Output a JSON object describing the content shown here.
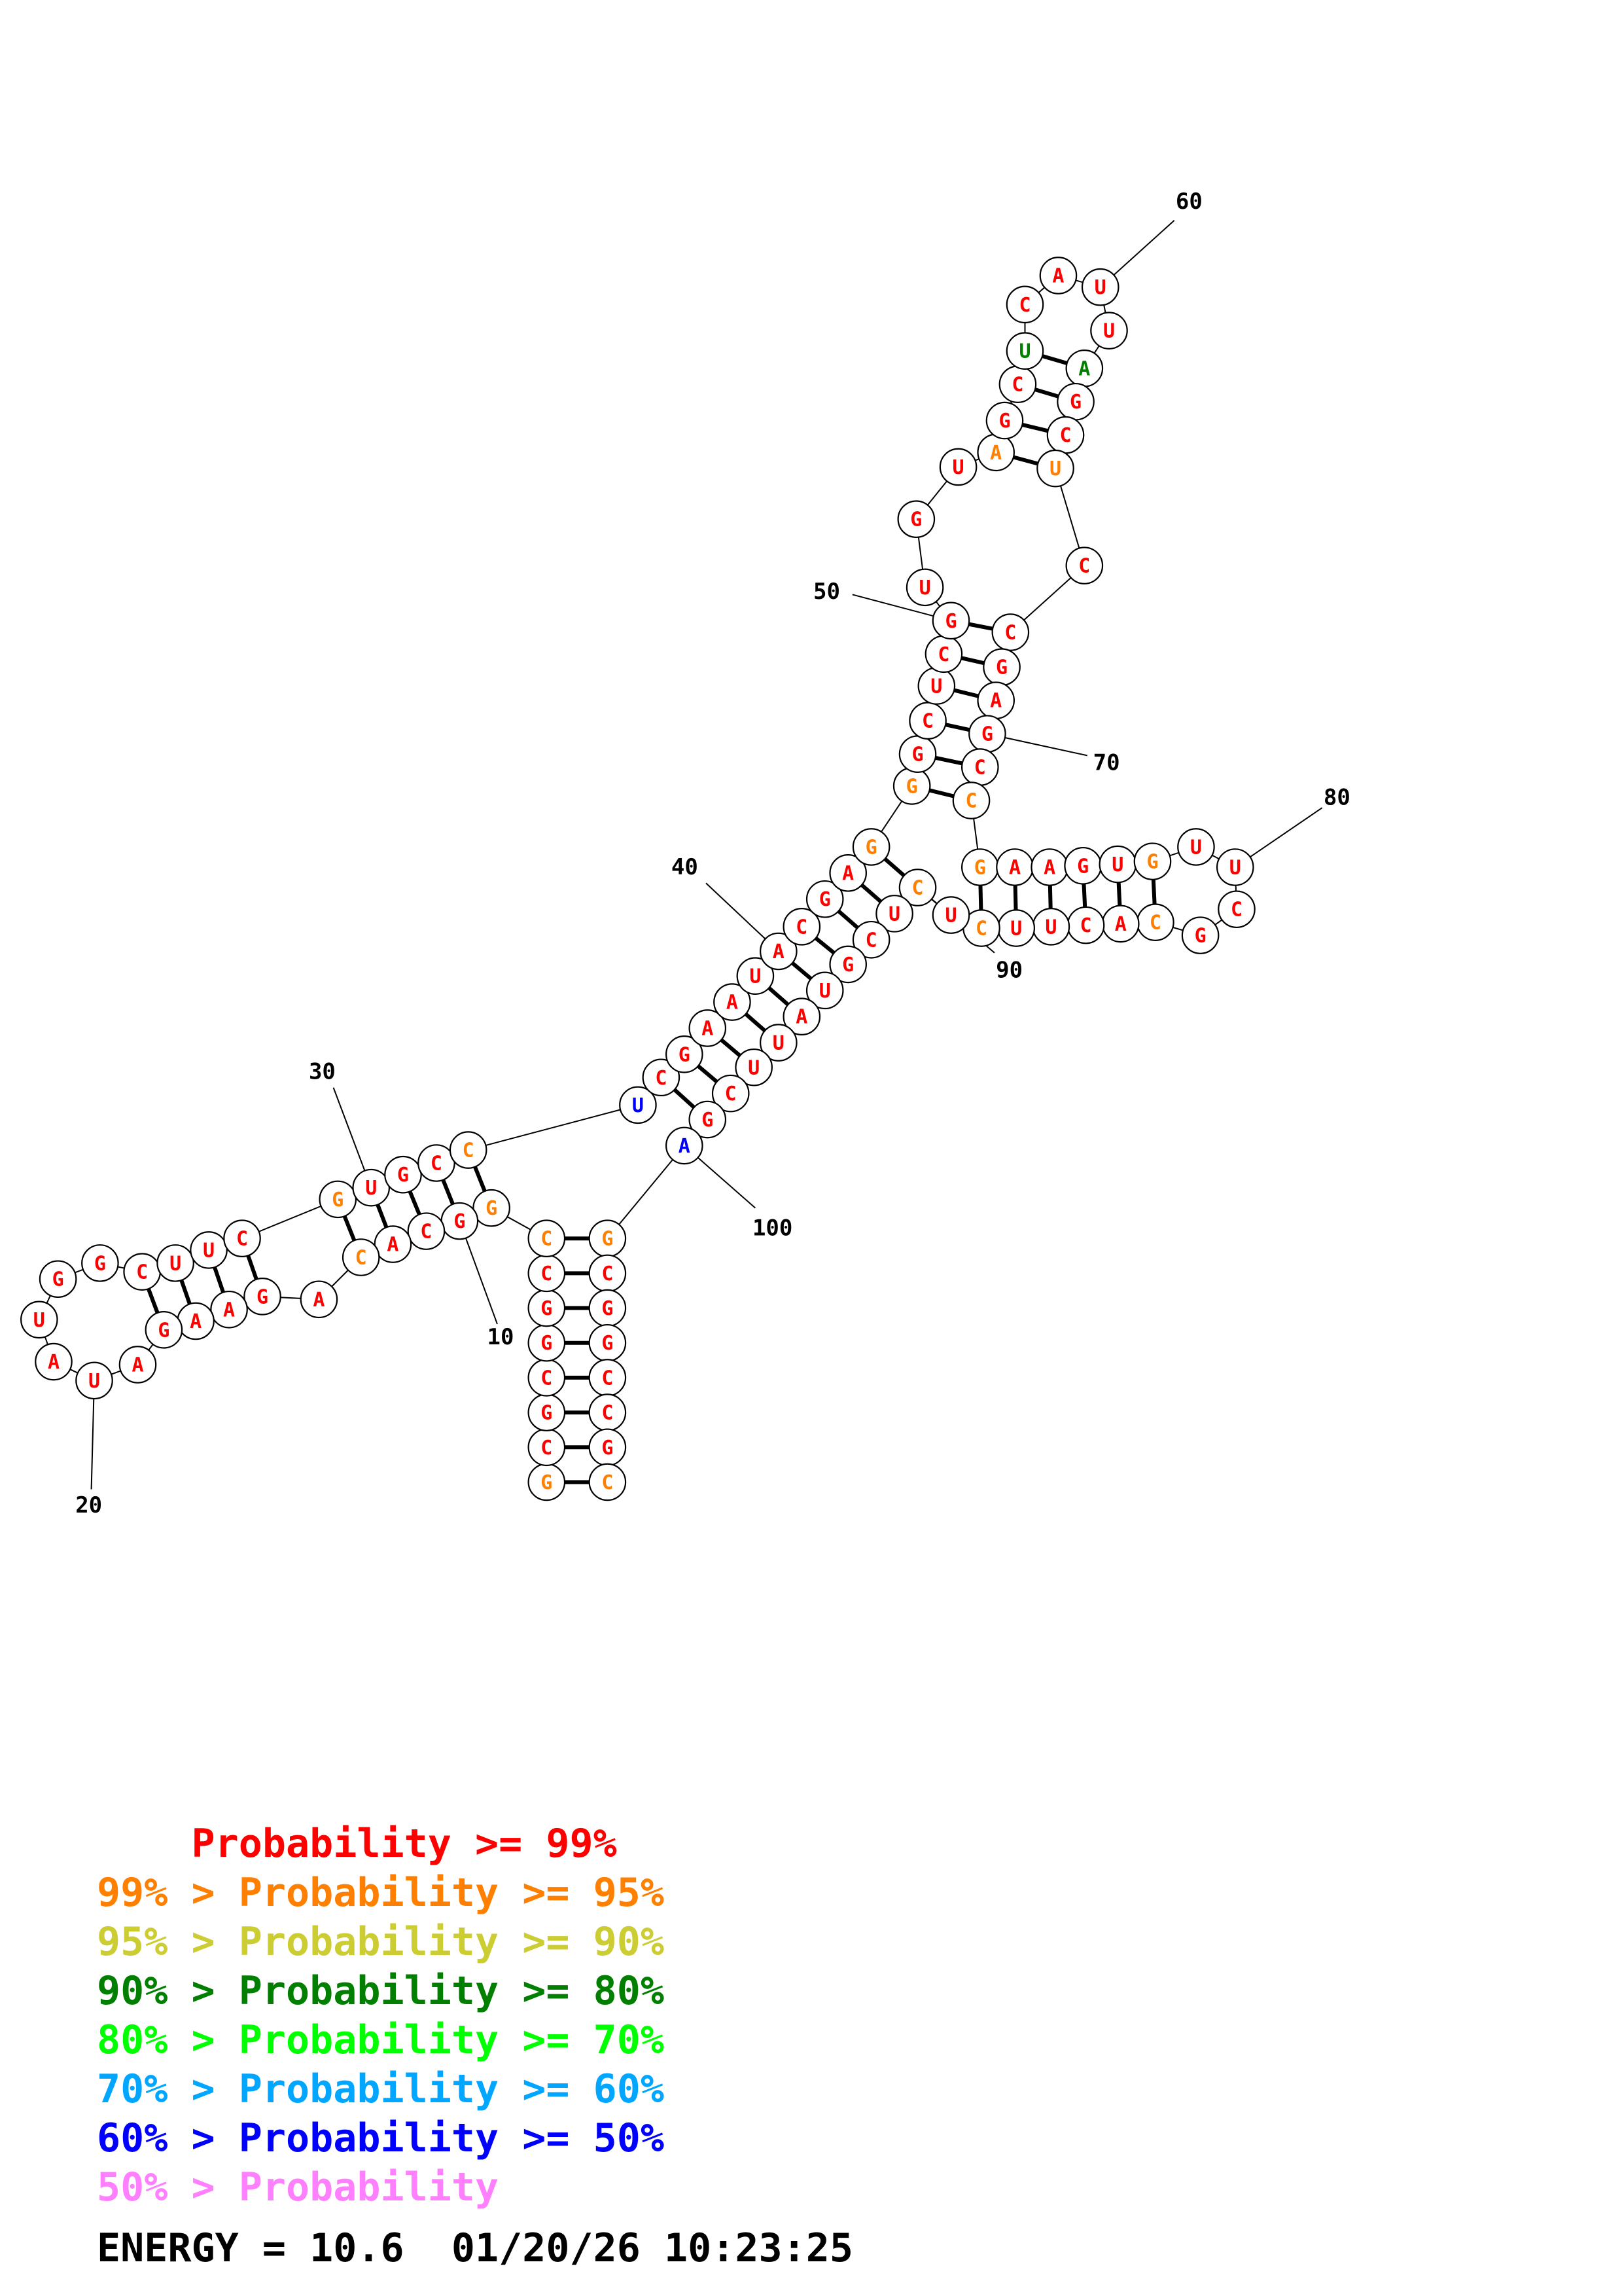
{
  "palette": {
    "ge99": "#ff0000",
    "ge95": "#ff7f00",
    "ge90": "#cccc33",
    "ge80": "#007f00",
    "ge70": "#00ff00",
    "ge60": "#00a6ff",
    "ge50": "#0000ff",
    "lt50": "#ff80ff"
  },
  "nucleotides": [
    {
      "i": 1,
      "b": "G",
      "c": "ge95"
    },
    {
      "i": 2,
      "b": "C",
      "c": "ge99"
    },
    {
      "i": 3,
      "b": "G",
      "c": "ge99"
    },
    {
      "i": 4,
      "b": "C",
      "c": "ge99"
    },
    {
      "i": 5,
      "b": "G",
      "c": "ge99"
    },
    {
      "i": 6,
      "b": "G",
      "c": "ge99"
    },
    {
      "i": 7,
      "b": "C",
      "c": "ge99"
    },
    {
      "i": 8,
      "b": "C",
      "c": "ge95"
    },
    {
      "i": 9,
      "b": "G",
      "c": "ge95"
    },
    {
      "i": 10,
      "b": "G",
      "c": "ge99"
    },
    {
      "i": 11,
      "b": "C",
      "c": "ge99"
    },
    {
      "i": 12,
      "b": "A",
      "c": "ge99"
    },
    {
      "i": 13,
      "b": "C",
      "c": "ge95"
    },
    {
      "i": 14,
      "b": "A",
      "c": "ge99"
    },
    {
      "i": 15,
      "b": "G",
      "c": "ge99"
    },
    {
      "i": 16,
      "b": "A",
      "c": "ge99"
    },
    {
      "i": 17,
      "b": "A",
      "c": "ge99"
    },
    {
      "i": 18,
      "b": "G",
      "c": "ge99"
    },
    {
      "i": 19,
      "b": "A",
      "c": "ge99"
    },
    {
      "i": 20,
      "b": "U",
      "c": "ge99"
    },
    {
      "i": 21,
      "b": "A",
      "c": "ge99"
    },
    {
      "i": 22,
      "b": "U",
      "c": "ge99"
    },
    {
      "i": 23,
      "b": "G",
      "c": "ge99"
    },
    {
      "i": 24,
      "b": "G",
      "c": "ge99"
    },
    {
      "i": 25,
      "b": "C",
      "c": "ge99"
    },
    {
      "i": 26,
      "b": "U",
      "c": "ge99"
    },
    {
      "i": 27,
      "b": "U",
      "c": "ge99"
    },
    {
      "i": 28,
      "b": "C",
      "c": "ge99"
    },
    {
      "i": 29,
      "b": "G",
      "c": "ge95"
    },
    {
      "i": 30,
      "b": "U",
      "c": "ge99"
    },
    {
      "i": 31,
      "b": "G",
      "c": "ge99"
    },
    {
      "i": 32,
      "b": "C",
      "c": "ge99"
    },
    {
      "i": 33,
      "b": "C",
      "c": "ge95"
    },
    {
      "i": 34,
      "b": "U",
      "c": "ge50"
    },
    {
      "i": 35,
      "b": "C",
      "c": "ge99"
    },
    {
      "i": 36,
      "b": "G",
      "c": "ge99"
    },
    {
      "i": 37,
      "b": "A",
      "c": "ge99"
    },
    {
      "i": 38,
      "b": "A",
      "c": "ge99"
    },
    {
      "i": 39,
      "b": "U",
      "c": "ge99"
    },
    {
      "i": 40,
      "b": "A",
      "c": "ge99"
    },
    {
      "i": 41,
      "b": "C",
      "c": "ge99"
    },
    {
      "i": 42,
      "b": "G",
      "c": "ge99"
    },
    {
      "i": 43,
      "b": "A",
      "c": "ge99"
    },
    {
      "i": 44,
      "b": "G",
      "c": "ge95"
    },
    {
      "i": 45,
      "b": "G",
      "c": "ge95"
    },
    {
      "i": 46,
      "b": "G",
      "c": "ge99"
    },
    {
      "i": 47,
      "b": "C",
      "c": "ge99"
    },
    {
      "i": 48,
      "b": "U",
      "c": "ge99"
    },
    {
      "i": 49,
      "b": "C",
      "c": "ge99"
    },
    {
      "i": 50,
      "b": "G",
      "c": "ge99"
    },
    {
      "i": 51,
      "b": "U",
      "c": "ge99"
    },
    {
      "i": 52,
      "b": "G",
      "c": "ge99"
    },
    {
      "i": 53,
      "b": "U",
      "c": "ge99"
    },
    {
      "i": 54,
      "b": "A",
      "c": "ge95"
    },
    {
      "i": 55,
      "b": "G",
      "c": "ge99"
    },
    {
      "i": 56,
      "b": "C",
      "c": "ge99"
    },
    {
      "i": 57,
      "b": "U",
      "c": "ge80"
    },
    {
      "i": 58,
      "b": "C",
      "c": "ge99"
    },
    {
      "i": 59,
      "b": "A",
      "c": "ge99"
    },
    {
      "i": 60,
      "b": "U",
      "c": "ge99"
    },
    {
      "i": 61,
      "b": "U",
      "c": "ge99"
    },
    {
      "i": 62,
      "b": "A",
      "c": "ge80"
    },
    {
      "i": 63,
      "b": "G",
      "c": "ge99"
    },
    {
      "i": 64,
      "b": "C",
      "c": "ge99"
    },
    {
      "i": 65,
      "b": "U",
      "c": "ge95"
    },
    {
      "i": 66,
      "b": "C",
      "c": "ge99"
    },
    {
      "i": 67,
      "b": "C",
      "c": "ge99"
    },
    {
      "i": 68,
      "b": "G",
      "c": "ge99"
    },
    {
      "i": 69,
      "b": "A",
      "c": "ge99"
    },
    {
      "i": 70,
      "b": "G",
      "c": "ge99"
    },
    {
      "i": 71,
      "b": "C",
      "c": "ge99"
    },
    {
      "i": 72,
      "b": "C",
      "c": "ge95"
    },
    {
      "i": 73,
      "b": "G",
      "c": "ge95"
    },
    {
      "i": 74,
      "b": "A",
      "c": "ge99"
    },
    {
      "i": 75,
      "b": "A",
      "c": "ge99"
    },
    {
      "i": 76,
      "b": "G",
      "c": "ge99"
    },
    {
      "i": 77,
      "b": "U",
      "c": "ge99"
    },
    {
      "i": 78,
      "b": "G",
      "c": "ge95"
    },
    {
      "i": 79,
      "b": "U",
      "c": "ge99"
    },
    {
      "i": 80,
      "b": "U",
      "c": "ge99"
    },
    {
      "i": 81,
      "b": "C",
      "c": "ge99"
    },
    {
      "i": 82,
      "b": "G",
      "c": "ge99"
    },
    {
      "i": 83,
      "b": "C",
      "c": "ge95"
    },
    {
      "i": 84,
      "b": "A",
      "c": "ge99"
    },
    {
      "i": 85,
      "b": "C",
      "c": "ge99"
    },
    {
      "i": 86,
      "b": "U",
      "c": "ge99"
    },
    {
      "i": 87,
      "b": "U",
      "c": "ge99"
    },
    {
      "i": 88,
      "b": "C",
      "c": "ge95"
    },
    {
      "i": 89,
      "b": "U",
      "c": "ge99"
    },
    {
      "i": 90,
      "b": "C",
      "c": "ge95"
    },
    {
      "i": 91,
      "b": "U",
      "c": "ge99"
    },
    {
      "i": 92,
      "b": "C",
      "c": "ge99"
    },
    {
      "i": 93,
      "b": "G",
      "c": "ge99"
    },
    {
      "i": 94,
      "b": "U",
      "c": "ge99"
    },
    {
      "i": 95,
      "b": "A",
      "c": "ge99"
    },
    {
      "i": 96,
      "b": "U",
      "c": "ge99"
    },
    {
      "i": 97,
      "b": "U",
      "c": "ge99"
    },
    {
      "i": 98,
      "b": "C",
      "c": "ge99"
    },
    {
      "i": 99,
      "b": "G",
      "c": "ge99"
    },
    {
      "i": 100,
      "b": "A",
      "c": "ge50"
    },
    {
      "i": 101,
      "b": "G",
      "c": "ge95"
    },
    {
      "i": 102,
      "b": "C",
      "c": "ge99"
    },
    {
      "i": 103,
      "b": "G",
      "c": "ge99"
    },
    {
      "i": 104,
      "b": "G",
      "c": "ge99"
    },
    {
      "i": 105,
      "b": "C",
      "c": "ge99"
    },
    {
      "i": 106,
      "b": "C",
      "c": "ge99"
    },
    {
      "i": 107,
      "b": "G",
      "c": "ge99"
    },
    {
      "i": 108,
      "b": "C",
      "c": "ge95"
    }
  ],
  "pairs": [
    [
      1,
      108
    ],
    [
      2,
      107
    ],
    [
      3,
      106
    ],
    [
      4,
      105
    ],
    [
      5,
      104
    ],
    [
      6,
      103
    ],
    [
      7,
      102
    ],
    [
      8,
      101
    ],
    [
      9,
      33
    ],
    [
      10,
      32
    ],
    [
      11,
      31
    ],
    [
      12,
      30
    ],
    [
      13,
      29
    ],
    [
      15,
      28
    ],
    [
      16,
      27
    ],
    [
      17,
      26
    ],
    [
      18,
      25
    ],
    [
      35,
      99
    ],
    [
      36,
      98
    ],
    [
      37,
      97
    ],
    [
      38,
      96
    ],
    [
      39,
      95
    ],
    [
      40,
      94
    ],
    [
      41,
      93
    ],
    [
      42,
      92
    ],
    [
      43,
      91
    ],
    [
      44,
      90
    ],
    [
      45,
      72
    ],
    [
      46,
      71
    ],
    [
      47,
      70
    ],
    [
      48,
      69
    ],
    [
      49,
      68
    ],
    [
      50,
      67
    ],
    [
      54,
      65
    ],
    [
      55,
      64
    ],
    [
      56,
      63
    ],
    [
      57,
      62
    ],
    [
      73,
      88
    ],
    [
      74,
      87
    ],
    [
      75,
      86
    ],
    [
      76,
      85
    ],
    [
      77,
      84
    ],
    [
      78,
      83
    ]
  ],
  "position_labels": [
    "10",
    "20",
    "30",
    "40",
    "50",
    "60",
    "70",
    "80",
    "90",
    "100"
  ],
  "legend": [
    {
      "prefix": "    ",
      "text": "Probability >= 99%",
      "c": "ge99"
    },
    {
      "prefix": "99% > ",
      "text": "Probability >= 95%",
      "c": "ge95"
    },
    {
      "prefix": "95% > ",
      "text": "Probability >= 90%",
      "c": "ge90"
    },
    {
      "prefix": "90% > ",
      "text": "Probability >= 80%",
      "c": "ge80"
    },
    {
      "prefix": "80% > ",
      "text": "Probability >= 70%",
      "c": "ge70"
    },
    {
      "prefix": "70% > ",
      "text": "Probability >= 60%",
      "c": "ge60"
    },
    {
      "prefix": "60% > ",
      "text": "Probability >= 50%",
      "c": "ge50"
    },
    {
      "prefix": "50% > ",
      "text": "Probability",
      "c": "lt50"
    }
  ],
  "energy_text": "ENERGY = 10.6  01/20/26 10:23:25"
}
